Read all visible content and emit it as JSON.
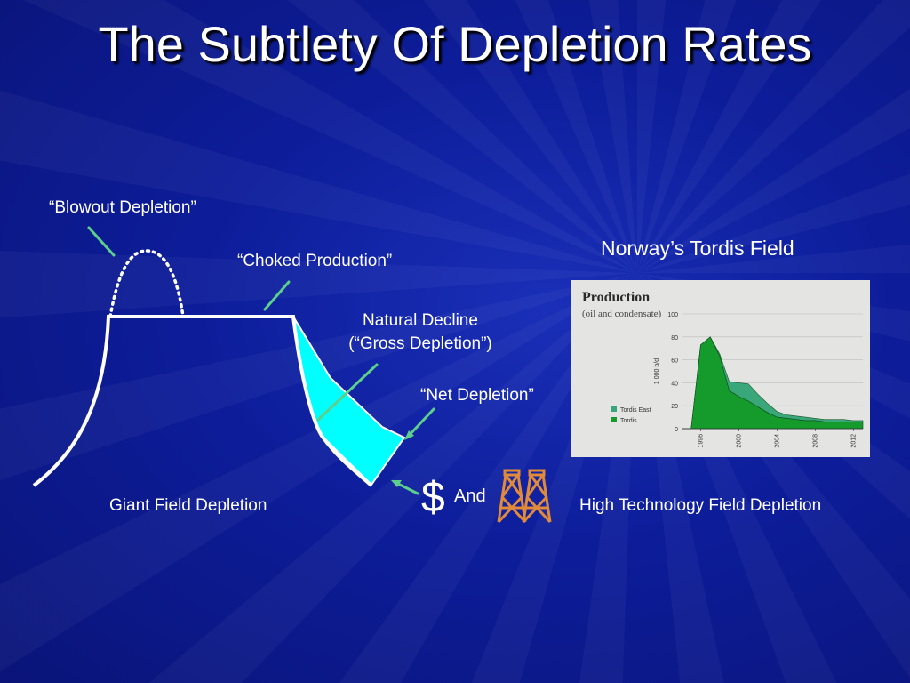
{
  "slide": {
    "title": "The Subtlety Of Depletion Rates",
    "blowout_label": "“Blowout Depletion”",
    "choked_label": "“Choked Production”",
    "natural_decline_line1": "Natural Decline",
    "natural_decline_line2": "(“Gross Depletion”)",
    "net_depletion_label": "“Net Depletion”",
    "giant_field_label": "Giant Field Depletion",
    "dollar_symbol": "$",
    "and_label": "And",
    "high_tech_label": "High Technology Field Depletion",
    "norway_label": "Norway’s Tordis Field"
  },
  "colors": {
    "curve": "#ffffff",
    "gross_depletion_fill": "#00ffff",
    "arrow": "#5ccf8a",
    "rig_icon": "#e08a3a",
    "tordis_east": "#3aa77a",
    "tordis": "#159a2c"
  },
  "icons": {
    "rigs": "oil-derrick-icon"
  },
  "chart_data": {
    "type": "area",
    "title": "Production",
    "subtitle": "(oil and condensate)",
    "ylabel": "1 000 b/d",
    "ylim": [
      0,
      100
    ],
    "yticks": [
      "0",
      "20",
      "40",
      "60",
      "80",
      "100"
    ],
    "xticks": [
      "1996",
      "2000",
      "2004",
      "2008",
      "2012"
    ],
    "x": [
      1994,
      1995,
      1996,
      1997,
      1998,
      1999,
      2000,
      2001,
      2002,
      2003,
      2004,
      2005,
      2006,
      2007,
      2008,
      2009,
      2010,
      2011,
      2012,
      2013
    ],
    "series": [
      {
        "name": "Tordis",
        "values": [
          0,
          0,
          73,
          80,
          63,
          33,
          28,
          24,
          19,
          14,
          10,
          9,
          8,
          7,
          7,
          6,
          6,
          6,
          6,
          6
        ]
      },
      {
        "name": "Tordis East",
        "values": [
          0,
          0,
          0,
          0,
          2,
          8,
          12,
          15,
          11,
          8,
          5,
          3,
          3,
          3,
          2,
          2,
          2,
          2,
          1,
          1
        ]
      }
    ],
    "legend": "bottom-left"
  }
}
